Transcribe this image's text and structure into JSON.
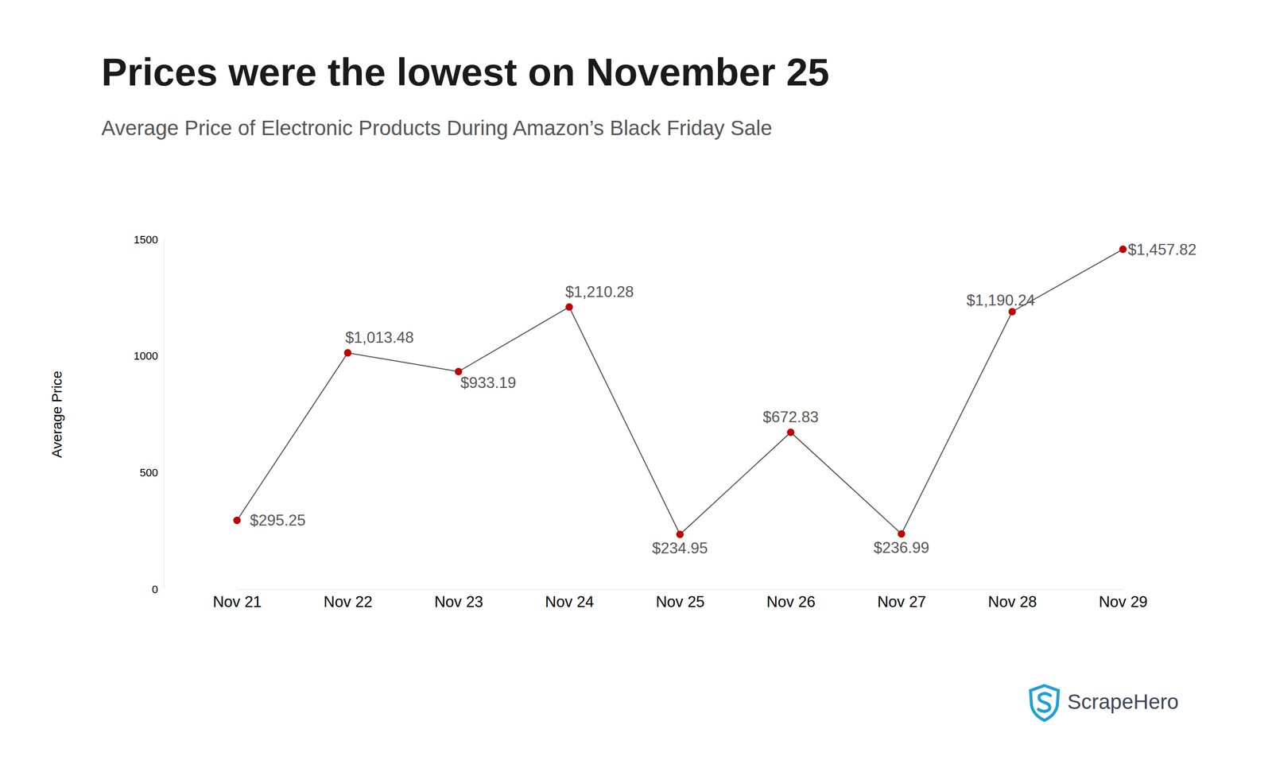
{
  "chart_data": {
    "type": "line",
    "title": "Prices were the lowest on November 25",
    "subtitle": "Average Price of Electronic Products During Amazon’s Black Friday Sale",
    "y_label": "Average Price",
    "source": "ScrapeHero",
    "categories": [
      "Nov 21",
      "Nov 22",
      "Nov 23",
      "Nov 24",
      "Nov 25",
      "Nov 26",
      "Nov 27",
      "Nov 28",
      "Nov 29"
    ],
    "values": [
      295.25,
      1013.48,
      933.19,
      1210.28,
      234.95,
      672.83,
      236.99,
      1190.24,
      1457.82
    ],
    "value_labels": [
      "$295.25",
      "$1,013.48",
      "$933.19",
      "$1,210.28",
      "$234.95",
      "$672.83",
      "$236.99",
      "$1,190.24",
      "$1,457.82"
    ],
    "color": "#c00000",
    "marker": "circle",
    "data_labels": true,
    "grid": false,
    "ylim": [
      0,
      1500
    ],
    "yticks": [
      0,
      500,
      1000,
      1500
    ]
  }
}
